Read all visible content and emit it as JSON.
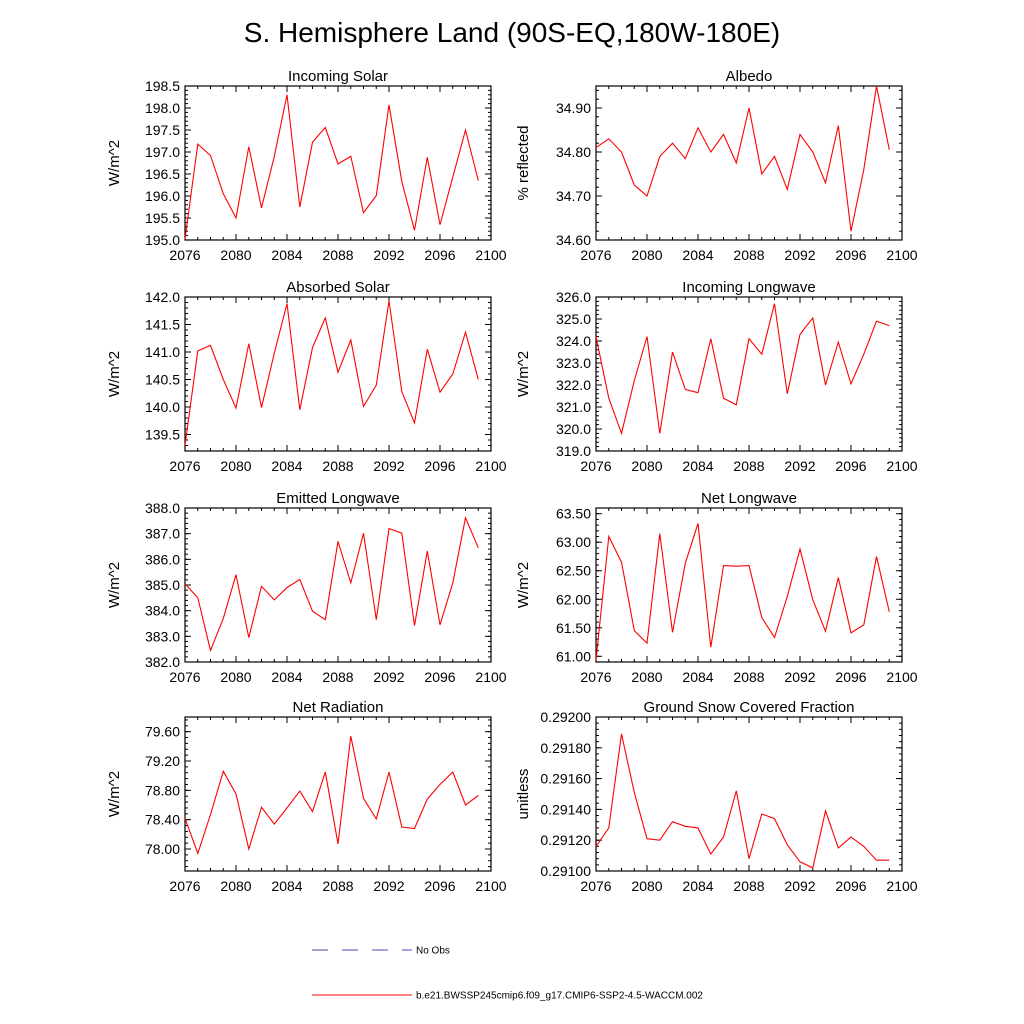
{
  "title": "S. Hemisphere Land (90S-EQ,180W-180E)",
  "legend": {
    "obs_label": "No Obs",
    "model_label": "b.e21.BWSSP245cmip6.f09_g17.CMIP6-SSP2-4.5-WACCM.002",
    "colors": {
      "model": "#ff0000",
      "obs": "#4a4ab0"
    }
  },
  "xticks": [
    "2076",
    "2080",
    "2084",
    "2088",
    "2092",
    "2096",
    "2100"
  ],
  "chart_data": [
    {
      "type": "line",
      "title": "Incoming Solar",
      "ylabel": "W/m^2",
      "xlim": [
        2076,
        2100
      ],
      "ylim": [
        195.0,
        198.5
      ],
      "decimals": 1,
      "yticks": [
        195.0,
        195.5,
        196.0,
        196.5,
        197.0,
        197.5,
        198.0,
        198.5
      ],
      "x": [
        2076,
        2077,
        2078,
        2079,
        2080,
        2081,
        2082,
        2083,
        2084,
        2085,
        2086,
        2087,
        2088,
        2089,
        2090,
        2091,
        2092,
        2093,
        2094,
        2095,
        2096,
        2097,
        2098,
        2099
      ],
      "values": [
        195.02,
        197.18,
        196.92,
        196.05,
        195.5,
        197.12,
        195.73,
        196.9,
        198.3,
        195.75,
        197.22,
        197.56,
        196.73,
        196.9,
        195.62,
        196.01,
        198.07,
        196.33,
        195.22,
        196.88,
        195.35,
        196.43,
        197.5,
        196.35
      ]
    },
    {
      "type": "line",
      "title": "Albedo",
      "ylabel": "% reflected",
      "xlim": [
        2076,
        2100
      ],
      "ylim": [
        34.6,
        34.95
      ],
      "decimals": 2,
      "yticks": [
        34.6,
        34.7,
        34.8,
        34.9
      ],
      "x": [
        2076,
        2077,
        2078,
        2079,
        2080,
        2081,
        2082,
        2083,
        2084,
        2085,
        2086,
        2087,
        2088,
        2089,
        2090,
        2091,
        2092,
        2093,
        2094,
        2095,
        2096,
        2097,
        2098,
        2099
      ],
      "values": [
        34.81,
        34.83,
        34.8,
        34.725,
        34.7,
        34.79,
        34.82,
        34.785,
        34.855,
        34.8,
        34.84,
        34.775,
        34.9,
        34.75,
        34.79,
        34.715,
        34.84,
        34.8,
        34.73,
        34.86,
        34.62,
        34.76,
        34.95,
        34.805
      ]
    },
    {
      "type": "line",
      "title": "Absorbed Solar",
      "ylabel": "W/m^2",
      "xlim": [
        2076,
        2100
      ],
      "ylim": [
        139.2,
        142.0
      ],
      "decimals": 1,
      "yticks": [
        139.5,
        140.0,
        140.5,
        141.0,
        141.5,
        142.0
      ],
      "x": [
        2076,
        2077,
        2078,
        2079,
        2080,
        2081,
        2082,
        2083,
        2084,
        2085,
        2086,
        2087,
        2088,
        2089,
        2090,
        2091,
        2092,
        2093,
        2094,
        2095,
        2096,
        2097,
        2098,
        2099
      ],
      "values": [
        139.3,
        141.02,
        141.12,
        140.5,
        139.98,
        141.15,
        139.99,
        140.98,
        141.88,
        139.95,
        141.08,
        141.62,
        140.63,
        141.22,
        140.01,
        140.4,
        141.93,
        140.28,
        139.71,
        141.05,
        140.27,
        140.6,
        141.36,
        140.5
      ]
    },
    {
      "type": "line",
      "title": "Incoming Longwave",
      "ylabel": "W/m^2",
      "xlim": [
        2076,
        2100
      ],
      "ylim": [
        319.0,
        326.0
      ],
      "decimals": 1,
      "yticks": [
        319.0,
        320.0,
        321.0,
        322.0,
        323.0,
        324.0,
        325.0,
        326.0
      ],
      "x": [
        2076,
        2077,
        2078,
        2079,
        2080,
        2081,
        2082,
        2083,
        2084,
        2085,
        2086,
        2087,
        2088,
        2089,
        2090,
        2091,
        2092,
        2093,
        2094,
        2095,
        2096,
        2097,
        2098,
        2099
      ],
      "values": [
        324.2,
        321.4,
        319.8,
        322.2,
        324.2,
        319.8,
        323.5,
        321.8,
        321.65,
        324.1,
        321.4,
        321.1,
        324.1,
        323.4,
        325.7,
        321.6,
        324.3,
        325.05,
        322.0,
        323.95,
        322.05,
        323.4,
        324.9,
        324.7
      ]
    },
    {
      "type": "line",
      "title": "Emitted Longwave",
      "ylabel": "W/m^2",
      "xlim": [
        2076,
        2100
      ],
      "ylim": [
        382.0,
        388.0
      ],
      "decimals": 1,
      "yticks": [
        382.0,
        383.0,
        384.0,
        385.0,
        386.0,
        387.0,
        388.0
      ],
      "x": [
        2076,
        2077,
        2078,
        2079,
        2080,
        2081,
        2082,
        2083,
        2084,
        2085,
        2086,
        2087,
        2088,
        2089,
        2090,
        2091,
        2092,
        2093,
        2094,
        2095,
        2096,
        2097,
        2098,
        2099
      ],
      "values": [
        385.05,
        384.5,
        382.45,
        383.7,
        385.4,
        382.95,
        384.95,
        384.42,
        384.9,
        385.22,
        383.98,
        383.65,
        386.7,
        385.08,
        387.02,
        383.65,
        387.2,
        387.02,
        383.42,
        386.32,
        383.45,
        385.08,
        387.62,
        386.45
      ]
    },
    {
      "type": "line",
      "title": "Net Longwave",
      "ylabel": "W/m^2",
      "xlim": [
        2076,
        2100
      ],
      "ylim": [
        60.9,
        63.6
      ],
      "decimals": 2,
      "yticks": [
        61.0,
        61.5,
        62.0,
        62.5,
        63.0,
        63.5
      ],
      "x": [
        2076,
        2077,
        2078,
        2079,
        2080,
        2081,
        2082,
        2083,
        2084,
        2085,
        2086,
        2087,
        2088,
        2089,
        2090,
        2091,
        2092,
        2093,
        2094,
        2095,
        2096,
        2097,
        2098,
        2099
      ],
      "values": [
        60.93,
        63.1,
        62.65,
        61.45,
        61.23,
        63.15,
        61.42,
        62.63,
        63.33,
        61.16,
        62.59,
        62.58,
        62.59,
        61.68,
        61.33,
        62.05,
        62.88,
        61.99,
        61.44,
        62.38,
        61.41,
        61.55,
        62.75,
        61.78
      ]
    },
    {
      "type": "line",
      "title": "Net Radiation",
      "ylabel": "W/m^2",
      "xlim": [
        2076,
        2100
      ],
      "ylim": [
        77.7,
        79.8
      ],
      "decimals": 2,
      "yticks": [
        78.0,
        78.4,
        78.8,
        79.2,
        79.6
      ],
      "x": [
        2076,
        2077,
        2078,
        2079,
        2080,
        2081,
        2082,
        2083,
        2084,
        2085,
        2086,
        2087,
        2088,
        2089,
        2090,
        2091,
        2092,
        2093,
        2094,
        2095,
        2096,
        2097,
        2098,
        2099
      ],
      "values": [
        78.42,
        77.94,
        78.47,
        79.06,
        78.75,
        78.0,
        78.57,
        78.34,
        78.56,
        78.79,
        78.51,
        79.05,
        78.07,
        79.54,
        78.69,
        78.41,
        79.05,
        78.3,
        78.28,
        78.68,
        78.88,
        79.05,
        78.6,
        78.73
      ]
    },
    {
      "type": "line",
      "title": "Ground Snow Covered Fraction",
      "ylabel": "unitless",
      "xlim": [
        2076,
        2100
      ],
      "ylim": [
        0.291,
        0.292
      ],
      "decimals": 5,
      "yticks": [
        0.291,
        0.2912,
        0.2914,
        0.2916,
        0.2918,
        0.292
      ],
      "x": [
        2076,
        2077,
        2078,
        2079,
        2080,
        2081,
        2082,
        2083,
        2084,
        2085,
        2086,
        2087,
        2088,
        2089,
        2090,
        2091,
        2092,
        2093,
        2094,
        2095,
        2096,
        2097,
        2098,
        2099
      ],
      "values": [
        0.29116,
        0.29128,
        0.29189,
        0.29151,
        0.29121,
        0.2912,
        0.29132,
        0.29129,
        0.29128,
        0.29111,
        0.29122,
        0.29152,
        0.29108,
        0.29137,
        0.29134,
        0.29117,
        0.29106,
        0.29102,
        0.29139,
        0.29115,
        0.29122,
        0.29116,
        0.29107,
        0.29107
      ]
    }
  ]
}
